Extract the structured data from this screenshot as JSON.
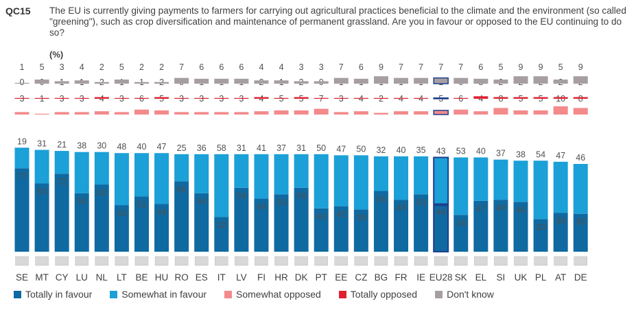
{
  "question": {
    "id": "QC15",
    "text": "The EU is currently giving payments to farmers for carrying out agricultural practices beneficial to the climate and the environment (so called \"greening\"), such as crop diversification and maintenance of permanent grassland. Are you in favour or opposed to the EU continuing to do so?",
    "unit": "(%)"
  },
  "colors": {
    "totally_favour": "#0f6aa1",
    "somewhat_favour": "#1ba0d8",
    "somewhat_opposed": "#f38a8b",
    "totally_opposed": "#e0202f",
    "dont_know": "#a69ea1",
    "eu_outline": "#1d3f8c"
  },
  "chart_data": {
    "type": "bar",
    "title": "",
    "categories": [
      "SE",
      "MT",
      "CY",
      "LU",
      "NL",
      "LT",
      "BE",
      "HU",
      "RO",
      "ES",
      "IT",
      "LV",
      "FI",
      "HR",
      "DK",
      "PT",
      "EE",
      "CZ",
      "BG",
      "FR",
      "IE",
      "EU28",
      "SK",
      "EL",
      "SI",
      "UK",
      "PL",
      "AT",
      "DE"
    ],
    "highlight": "EU28",
    "series": [
      {
        "name": "Totally in favour",
        "values": [
          77,
          63,
          72,
          54,
          62,
          43,
          51,
          44,
          65,
          54,
          32,
          59,
          49,
          53,
          59,
          40,
          42,
          39,
          56,
          48,
          53,
          44,
          34,
          47,
          48,
          46,
          30,
          36,
          35
        ]
      },
      {
        "name": "Somewhat in favour",
        "values": [
          19,
          31,
          21,
          38,
          30,
          48,
          40,
          47,
          25,
          36,
          58,
          31,
          41,
          37,
          31,
          50,
          47,
          50,
          32,
          40,
          35,
          43,
          53,
          40,
          37,
          38,
          54,
          47,
          46
        ]
      },
      {
        "name": "Somewhat opposed",
        "values": [
          3,
          1,
          3,
          3,
          4,
          3,
          6,
          5,
          3,
          3,
          3,
          3,
          4,
          5,
          5,
          7,
          3,
          4,
          2,
          4,
          4,
          5,
          6,
          4,
          8,
          5,
          5,
          10,
          8
        ]
      },
      {
        "name": "Totally opposed",
        "values": [
          0,
          0,
          1,
          1,
          2,
          1,
          1,
          2,
          0,
          1,
          1,
          1,
          2,
          1,
          2,
          0,
          1,
          1,
          1,
          1,
          1,
          1,
          0,
          3,
          2,
          2,
          2,
          2,
          2
        ]
      },
      {
        "name": "Don't know",
        "values": [
          1,
          5,
          3,
          4,
          2,
          5,
          2,
          2,
          7,
          6,
          6,
          6,
          4,
          4,
          3,
          3,
          7,
          6,
          9,
          7,
          7,
          7,
          7,
          6,
          5,
          9,
          9,
          5,
          9
        ]
      }
    ],
    "legend": [
      "Totally in favour",
      "Somewhat in favour",
      "Somewhat opposed",
      "Totally opposed",
      "Don't know"
    ]
  }
}
